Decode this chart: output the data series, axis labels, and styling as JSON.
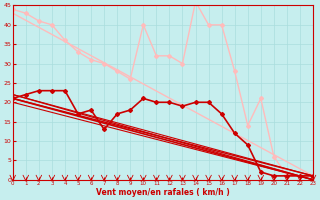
{
  "xlabel": "Vent moyen/en rafales ( km/h )",
  "bg_color": "#c6eeee",
  "grid_color": "#aadddd",
  "xlim": [
    0,
    23
  ],
  "ylim": [
    0,
    45
  ],
  "yticks": [
    0,
    5,
    10,
    15,
    20,
    25,
    30,
    35,
    40,
    45
  ],
  "xticks": [
    0,
    1,
    2,
    3,
    4,
    5,
    6,
    7,
    8,
    9,
    10,
    11,
    12,
    13,
    14,
    15,
    16,
    17,
    18,
    19,
    20,
    21,
    22,
    23
  ],
  "series": [
    {
      "x": [
        0,
        1,
        2,
        3,
        4,
        5,
        6,
        7,
        8,
        9,
        10,
        11,
        12,
        13,
        14,
        15,
        16,
        17,
        18,
        19,
        20,
        21,
        22,
        23
      ],
      "y": [
        44,
        43,
        41,
        40,
        36,
        33,
        31,
        30,
        28,
        26,
        40,
        32,
        32,
        30,
        46,
        40,
        40,
        28,
        14,
        21,
        6,
        1,
        1,
        1
      ],
      "color": "#ffbbbb",
      "lw": 1.0,
      "marker": "D",
      "ms": 2.0
    },
    {
      "x": [
        0,
        23
      ],
      "y": [
        43,
        1
      ],
      "color": "#ffbbbb",
      "lw": 1.0,
      "marker": null,
      "ms": 0
    },
    {
      "x": [
        0,
        1,
        2,
        3,
        4,
        5,
        6,
        7,
        8,
        9,
        10,
        11,
        12,
        13,
        14,
        15,
        16,
        17,
        18,
        19,
        20,
        21,
        22,
        23
      ],
      "y": [
        21,
        22,
        23,
        23,
        23,
        17,
        18,
        13,
        17,
        18,
        21,
        20,
        20,
        19,
        20,
        20,
        17,
        12,
        9,
        2,
        1,
        1,
        1,
        1
      ],
      "color": "#cc0000",
      "lw": 1.2,
      "marker": "D",
      "ms": 2.0
    },
    {
      "x": [
        0,
        23
      ],
      "y": [
        21,
        0
      ],
      "color": "#cc0000",
      "lw": 1.2,
      "marker": null,
      "ms": 0
    },
    {
      "x": [
        0,
        23
      ],
      "y": [
        21,
        1
      ],
      "color": "#cc0000",
      "lw": 1.0,
      "marker": null,
      "ms": 0
    },
    {
      "x": [
        0,
        23
      ],
      "y": [
        22,
        0
      ],
      "color": "#cc0000",
      "lw": 0.9,
      "marker": null,
      "ms": 0
    },
    {
      "x": [
        0,
        23
      ],
      "y": [
        22,
        1
      ],
      "color": "#cc0000",
      "lw": 0.8,
      "marker": null,
      "ms": 0
    },
    {
      "x": [
        0,
        23
      ],
      "y": [
        20,
        0
      ],
      "color": "#cc0000",
      "lw": 0.8,
      "marker": null,
      "ms": 0
    }
  ]
}
